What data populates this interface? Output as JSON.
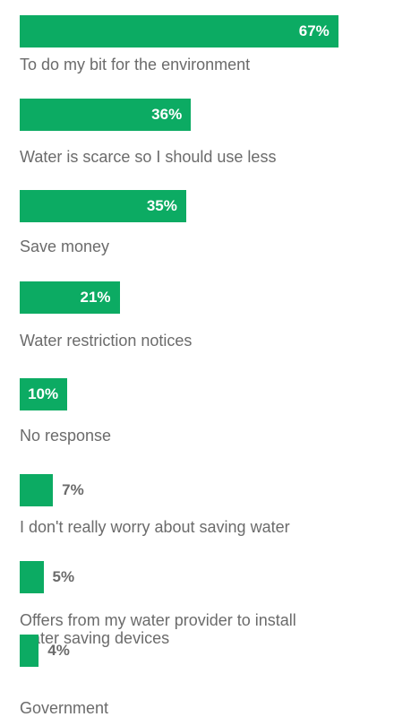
{
  "chart_data": {
    "type": "bar",
    "orientation": "horizontal",
    "color": "#0cab63",
    "categories": [
      "To do my bit for the environment",
      "Water is scarce so I should use less",
      "Save money",
      "Water restriction notices",
      "No response",
      "I don't really worry about saving water",
      "Offers from my water provider to install water saving devices",
      "Government"
    ],
    "values": [
      67,
      36,
      35,
      21,
      10,
      7,
      5,
      4
    ],
    "value_labels": [
      "67%",
      "36%",
      "35%",
      "21%",
      "10%",
      "7%",
      "5%",
      "4%"
    ]
  }
}
